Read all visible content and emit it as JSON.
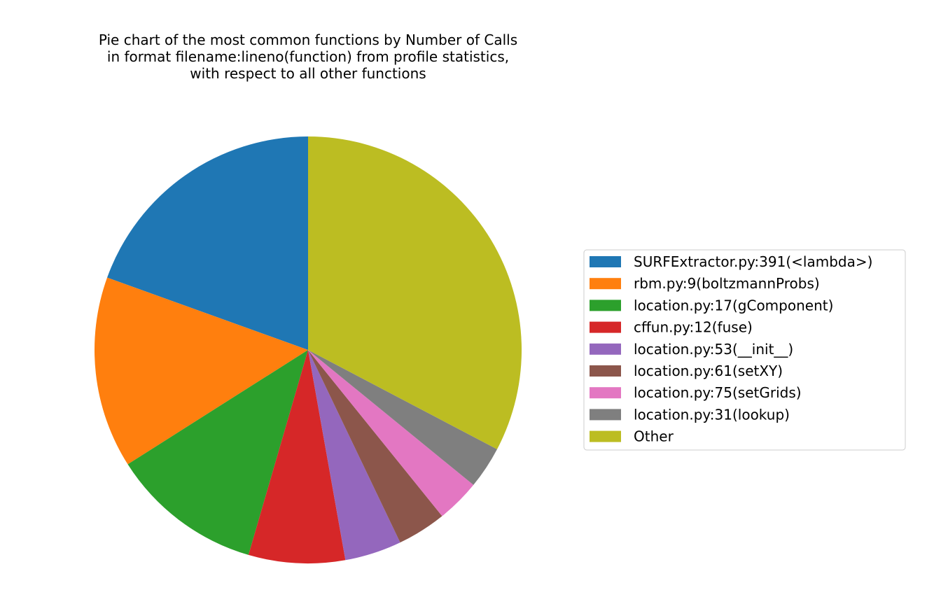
{
  "chart_data": {
    "type": "pie",
    "title_lines": [
      "Pie chart of the most common functions by Number of Calls",
      "in format filename:lineno(function) from profile statistics,",
      "with respect to all other functions"
    ],
    "start_angle_deg": 90,
    "direction": "counterclockwise",
    "legend_position": "right",
    "slices": [
      {
        "label": "SURFExtractor.py:391(<lambda>)",
        "value": 19.5,
        "color": "#1f77b4"
      },
      {
        "label": "rbm.py:9(boltzmannProbs)",
        "value": 14.5,
        "color": "#ff7f0e"
      },
      {
        "label": "location.py:17(gComponent)",
        "value": 11.5,
        "color": "#2ca02c"
      },
      {
        "label": "cffun.py:12(fuse)",
        "value": 7.3,
        "color": "#d62728"
      },
      {
        "label": "location.py:53(__init__)",
        "value": 4.3,
        "color": "#9467bd"
      },
      {
        "label": "location.py:61(setXY)",
        "value": 3.7,
        "color": "#8c564b"
      },
      {
        "label": "location.py:75(setGrids)",
        "value": 3.3,
        "color": "#e377c2"
      },
      {
        "label": "location.py:31(lookup)",
        "value": 3.2,
        "color": "#7f7f7f"
      },
      {
        "label": "Other",
        "value": 32.7,
        "color": "#bcbd22"
      }
    ]
  }
}
